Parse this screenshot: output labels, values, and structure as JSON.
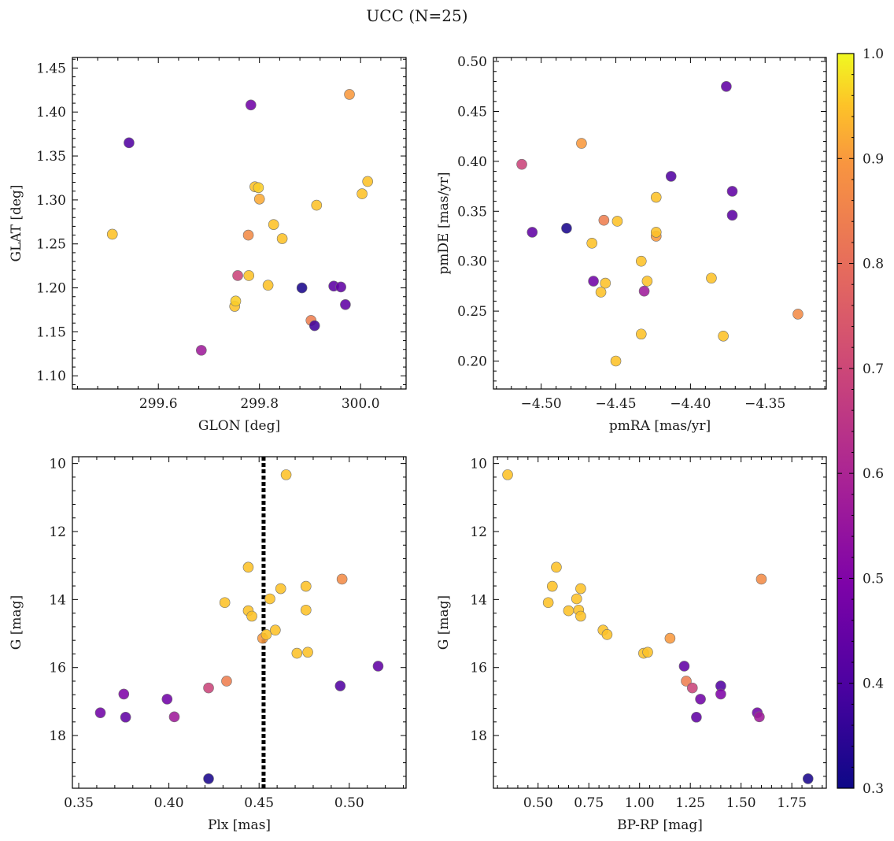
{
  "title": "UCC (N=25)",
  "colorbar": {
    "ticks": [
      "0.3",
      "0.4",
      "0.5",
      "0.6",
      "0.7",
      "0.8",
      "0.9",
      "1.0"
    ],
    "range": [
      0.3,
      1.0
    ],
    "colormap": "plasma"
  },
  "chart_data": [
    {
      "type": "scatter",
      "panel": "top-left",
      "xlabel": "GLON [deg]",
      "ylabel": "GLAT [deg]",
      "xlim": [
        299.43,
        300.09
      ],
      "ylim": [
        1.085,
        1.462
      ],
      "xticks": [
        299.6,
        299.8,
        300.0
      ],
      "xtick_labels": [
        "299.6",
        "299.8",
        "300.0"
      ],
      "yticks": [
        1.1,
        1.15,
        1.2,
        1.25,
        1.3,
        1.35,
        1.4,
        1.45
      ],
      "ytick_labels": [
        "1.10",
        "1.15",
        "1.20",
        "1.25",
        "1.30",
        "1.35",
        "1.40",
        "1.45"
      ],
      "y_inverted": false,
      "points": [
        {
          "x": 299.542,
          "y": 1.365,
          "c": 0.41
        },
        {
          "x": 299.509,
          "y": 1.261,
          "c": 0.95
        },
        {
          "x": 299.685,
          "y": 1.129,
          "c": 0.57
        },
        {
          "x": 299.757,
          "y": 1.214,
          "c": 0.69
        },
        {
          "x": 299.751,
          "y": 1.179,
          "c": 0.95
        },
        {
          "x": 299.753,
          "y": 1.185,
          "c": 0.96
        },
        {
          "x": 299.779,
          "y": 1.214,
          "c": 0.95
        },
        {
          "x": 299.778,
          "y": 1.26,
          "c": 0.87
        },
        {
          "x": 299.783,
          "y": 1.408,
          "c": 0.47
        },
        {
          "x": 299.791,
          "y": 1.315,
          "c": 0.95
        },
        {
          "x": 299.798,
          "y": 1.314,
          "c": 0.96
        },
        {
          "x": 299.8,
          "y": 1.301,
          "c": 0.92
        },
        {
          "x": 299.817,
          "y": 1.203,
          "c": 0.95
        },
        {
          "x": 299.828,
          "y": 1.272,
          "c": 0.95
        },
        {
          "x": 299.845,
          "y": 1.256,
          "c": 0.95
        },
        {
          "x": 299.884,
          "y": 1.2,
          "c": 0.32
        },
        {
          "x": 299.902,
          "y": 1.163,
          "c": 0.84
        },
        {
          "x": 299.909,
          "y": 1.157,
          "c": 0.38
        },
        {
          "x": 299.913,
          "y": 1.294,
          "c": 0.95
        },
        {
          "x": 299.947,
          "y": 1.202,
          "c": 0.43
        },
        {
          "x": 299.961,
          "y": 1.201,
          "c": 0.44
        },
        {
          "x": 299.97,
          "y": 1.181,
          "c": 0.44
        },
        {
          "x": 299.978,
          "y": 1.42,
          "c": 0.9
        },
        {
          "x": 300.003,
          "y": 1.307,
          "c": 0.95
        },
        {
          "x": 300.014,
          "y": 1.321,
          "c": 0.95
        }
      ]
    },
    {
      "type": "scatter",
      "panel": "top-right",
      "xlabel": "pmRA [mas/yr]",
      "ylabel": "pmDE [mas/yr]",
      "xlim": [
        -4.532,
        -4.309
      ],
      "ylim": [
        0.172,
        0.504
      ],
      "xticks": [
        -4.5,
        -4.45,
        -4.4,
        -4.35
      ],
      "xtick_labels": [
        "−4.50",
        "−4.45",
        "−4.40",
        "−4.35"
      ],
      "yticks": [
        0.2,
        0.25,
        0.3,
        0.35,
        0.4,
        0.45,
        0.5
      ],
      "ytick_labels": [
        "0.20",
        "0.25",
        "0.30",
        "0.35",
        "0.40",
        "0.45",
        "0.50"
      ],
      "y_inverted": false,
      "points": [
        {
          "x": -4.513,
          "y": 0.397,
          "c": 0.69
        },
        {
          "x": -4.506,
          "y": 0.329,
          "c": 0.44
        },
        {
          "x": -4.483,
          "y": 0.333,
          "c": 0.32
        },
        {
          "x": -4.473,
          "y": 0.418,
          "c": 0.9
        },
        {
          "x": -4.466,
          "y": 0.318,
          "c": 0.95
        },
        {
          "x": -4.465,
          "y": 0.28,
          "c": 0.47
        },
        {
          "x": -4.46,
          "y": 0.269,
          "c": 0.95
        },
        {
          "x": -4.458,
          "y": 0.341,
          "c": 0.84
        },
        {
          "x": -4.457,
          "y": 0.278,
          "c": 0.95
        },
        {
          "x": -4.449,
          "y": 0.34,
          "c": 0.95
        },
        {
          "x": -4.45,
          "y": 0.2,
          "c": 0.95
        },
        {
          "x": -4.433,
          "y": 0.3,
          "c": 0.95
        },
        {
          "x": -4.433,
          "y": 0.227,
          "c": 0.95
        },
        {
          "x": -4.431,
          "y": 0.27,
          "c": 0.57
        },
        {
          "x": -4.429,
          "y": 0.28,
          "c": 0.95
        },
        {
          "x": -4.423,
          "y": 0.364,
          "c": 0.95
        },
        {
          "x": -4.423,
          "y": 0.325,
          "c": 0.9
        },
        {
          "x": -4.423,
          "y": 0.329,
          "c": 0.95
        },
        {
          "x": -4.413,
          "y": 0.385,
          "c": 0.41
        },
        {
          "x": -4.386,
          "y": 0.283,
          "c": 0.95
        },
        {
          "x": -4.378,
          "y": 0.225,
          "c": 0.95
        },
        {
          "x": -4.376,
          "y": 0.475,
          "c": 0.44
        },
        {
          "x": -4.372,
          "y": 0.37,
          "c": 0.44
        },
        {
          "x": -4.372,
          "y": 0.346,
          "c": 0.43
        },
        {
          "x": -4.328,
          "y": 0.247,
          "c": 0.87
        }
      ]
    },
    {
      "type": "scatter",
      "panel": "bottom-left",
      "xlabel": "Plx [mas]",
      "ylabel": "G [mag]",
      "xlim": [
        0.3465,
        0.5315
      ],
      "ylim": [
        9.8,
        19.55
      ],
      "xticks": [
        0.35,
        0.4,
        0.45,
        0.5
      ],
      "xtick_labels": [
        "0.35",
        "0.40",
        "0.45",
        "0.50"
      ],
      "yticks": [
        10,
        12,
        14,
        16,
        18
      ],
      "ytick_labels": [
        "10",
        "12",
        "14",
        "16",
        "18"
      ],
      "y_inverted": true,
      "vline": {
        "x": 0.4525,
        "style": "dotted"
      },
      "points": [
        {
          "x": 0.362,
          "y": 17.33,
          "c": 0.47
        },
        {
          "x": 0.375,
          "y": 16.78,
          "c": 0.5
        },
        {
          "x": 0.376,
          "y": 17.46,
          "c": 0.44
        },
        {
          "x": 0.399,
          "y": 16.93,
          "c": 0.47
        },
        {
          "x": 0.403,
          "y": 17.45,
          "c": 0.57
        },
        {
          "x": 0.422,
          "y": 16.6,
          "c": 0.69
        },
        {
          "x": 0.422,
          "y": 19.27,
          "c": 0.32
        },
        {
          "x": 0.431,
          "y": 14.09,
          "c": 0.95
        },
        {
          "x": 0.432,
          "y": 16.4,
          "c": 0.84
        },
        {
          "x": 0.444,
          "y": 13.05,
          "c": 0.95
        },
        {
          "x": 0.444,
          "y": 14.33,
          "c": 0.95
        },
        {
          "x": 0.446,
          "y": 14.49,
          "c": 0.95
        },
        {
          "x": 0.452,
          "y": 15.14,
          "c": 0.9
        },
        {
          "x": 0.454,
          "y": 15.03,
          "c": 0.95
        },
        {
          "x": 0.456,
          "y": 13.98,
          "c": 0.95
        },
        {
          "x": 0.459,
          "y": 14.9,
          "c": 0.95
        },
        {
          "x": 0.462,
          "y": 13.68,
          "c": 0.95
        },
        {
          "x": 0.465,
          "y": 10.33,
          "c": 0.95
        },
        {
          "x": 0.471,
          "y": 15.58,
          "c": 0.95
        },
        {
          "x": 0.476,
          "y": 13.61,
          "c": 0.95
        },
        {
          "x": 0.476,
          "y": 14.31,
          "c": 0.95
        },
        {
          "x": 0.477,
          "y": 15.55,
          "c": 0.95
        },
        {
          "x": 0.495,
          "y": 16.54,
          "c": 0.41
        },
        {
          "x": 0.496,
          "y": 13.4,
          "c": 0.87
        },
        {
          "x": 0.516,
          "y": 15.96,
          "c": 0.44
        }
      ]
    },
    {
      "type": "scatter",
      "panel": "bottom-right",
      "xlabel": "BP-RP [mag]",
      "ylabel": "G [mag]",
      "xlim": [
        0.28,
        1.92
      ],
      "ylim": [
        9.8,
        19.55
      ],
      "xticks": [
        0.5,
        0.75,
        1.0,
        1.25,
        1.5,
        1.75
      ],
      "xtick_labels": [
        "0.50",
        "0.75",
        "1.00",
        "1.25",
        "1.50",
        "1.75"
      ],
      "yticks": [
        10,
        12,
        14,
        16,
        18
      ],
      "ytick_labels": [
        "10",
        "12",
        "14",
        "16",
        "18"
      ],
      "y_inverted": true,
      "points": [
        {
          "x": 0.35,
          "y": 10.33,
          "c": 0.95
        },
        {
          "x": 0.55,
          "y": 14.09,
          "c": 0.95
        },
        {
          "x": 0.57,
          "y": 13.61,
          "c": 0.95
        },
        {
          "x": 0.59,
          "y": 13.05,
          "c": 0.95
        },
        {
          "x": 0.65,
          "y": 14.33,
          "c": 0.95
        },
        {
          "x": 0.69,
          "y": 13.98,
          "c": 0.95
        },
        {
          "x": 0.7,
          "y": 14.31,
          "c": 0.95
        },
        {
          "x": 0.71,
          "y": 13.68,
          "c": 0.95
        },
        {
          "x": 0.71,
          "y": 14.49,
          "c": 0.95
        },
        {
          "x": 0.82,
          "y": 14.9,
          "c": 0.95
        },
        {
          "x": 0.84,
          "y": 15.03,
          "c": 0.95
        },
        {
          "x": 1.02,
          "y": 15.58,
          "c": 0.95
        },
        {
          "x": 1.04,
          "y": 15.55,
          "c": 0.95
        },
        {
          "x": 1.15,
          "y": 15.14,
          "c": 0.9
        },
        {
          "x": 1.22,
          "y": 15.96,
          "c": 0.44
        },
        {
          "x": 1.23,
          "y": 16.4,
          "c": 0.84
        },
        {
          "x": 1.26,
          "y": 16.6,
          "c": 0.69
        },
        {
          "x": 1.28,
          "y": 17.46,
          "c": 0.44
        },
        {
          "x": 1.3,
          "y": 16.93,
          "c": 0.47
        },
        {
          "x": 1.4,
          "y": 16.54,
          "c": 0.41
        },
        {
          "x": 1.4,
          "y": 16.78,
          "c": 0.5
        },
        {
          "x": 1.58,
          "y": 17.33,
          "c": 0.47
        },
        {
          "x": 1.59,
          "y": 17.45,
          "c": 0.57
        },
        {
          "x": 1.6,
          "y": 13.4,
          "c": 0.87
        },
        {
          "x": 1.83,
          "y": 19.27,
          "c": 0.32
        }
      ]
    }
  ]
}
